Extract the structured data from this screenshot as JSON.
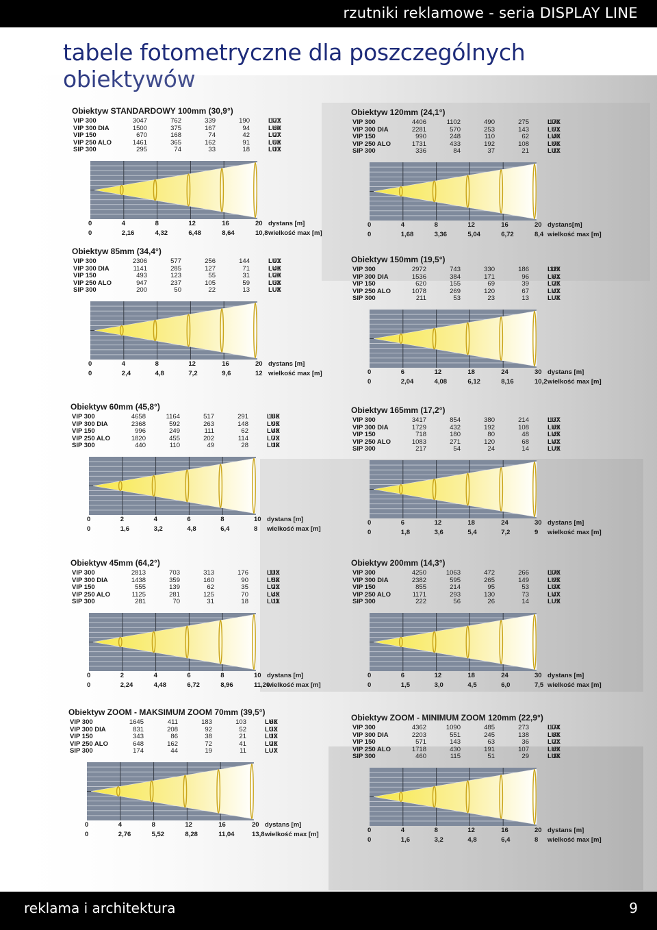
{
  "header": {
    "title": "rzutniki reklamowe - seria DISPLAY LINE"
  },
  "page_title": "tabele fotometryczne dla poszczególnych obiektywów",
  "footer": {
    "left": "reklama i architektura",
    "page": "9"
  },
  "units": {
    "lux": "LUX",
    "distance": "dystans [m]",
    "distance_alt": "dystans[m]",
    "size": "wielkość max [m]"
  },
  "lenses": [
    {
      "title": "Obiektyw STANDARDOWY 100mm (30,9°)",
      "rows": [
        {
          "model": "VIP 300",
          "values": [
            "3047",
            "762",
            "339",
            "190",
            "122"
          ]
        },
        {
          "model": "VIP 300 DIA",
          "values": [
            "1500",
            "375",
            "167",
            "94",
            "60"
          ]
        },
        {
          "model": "VIP 150",
          "values": [
            "670",
            "168",
            "74",
            "42",
            "27"
          ]
        },
        {
          "model": "VIP 250 ALO",
          "values": [
            "1461",
            "365",
            "162",
            "91",
            "58"
          ]
        },
        {
          "model": "SIP 300",
          "values": [
            "295",
            "74",
            "33",
            "18",
            "12"
          ]
        }
      ],
      "distance_ticks": [
        "0",
        "4",
        "8",
        "12",
        "16",
        "20"
      ],
      "size_ticks": [
        "0",
        "2,16",
        "4,32",
        "6,48",
        "8,64",
        "10,8"
      ],
      "distance_label": "dystans [m]"
    },
    {
      "title": "Obiektyw 120mm (24,1°)",
      "rows": [
        {
          "model": "VIP 300",
          "values": [
            "4406",
            "1102",
            "490",
            "275",
            "176"
          ]
        },
        {
          "model": "VIP 300 DIA",
          "values": [
            "2281",
            "570",
            "253",
            "143",
            "91"
          ]
        },
        {
          "model": "VIP 150",
          "values": [
            "990",
            "248",
            "110",
            "62",
            "40"
          ]
        },
        {
          "model": "VIP 250 ALO",
          "values": [
            "1731",
            "433",
            "192",
            "108",
            "96"
          ]
        },
        {
          "model": "SIP 300",
          "values": [
            "336",
            "84",
            "37",
            "21",
            "13"
          ]
        }
      ],
      "distance_ticks": [
        "0",
        "4",
        "8",
        "12",
        "16",
        "20"
      ],
      "size_ticks": [
        "0",
        "1,68",
        "3,36",
        "5,04",
        "6,72",
        "8,4"
      ],
      "distance_label": "dystans[m]"
    },
    {
      "title": "Obiektyw 85mm (34,4°)",
      "rows": [
        {
          "model": "VIP 300",
          "values": [
            "2306",
            "577",
            "256",
            "144",
            "92"
          ]
        },
        {
          "model": "VIP 300 DIA",
          "values": [
            "1141",
            "285",
            "127",
            "71",
            "46"
          ]
        },
        {
          "model": "VIP 150",
          "values": [
            "493",
            "123",
            "55",
            "31",
            "20"
          ]
        },
        {
          "model": "VIP 250 ALO",
          "values": [
            "947",
            "237",
            "105",
            "59",
            "38"
          ]
        },
        {
          "model": "SIP 300",
          "values": [
            "200",
            "50",
            "22",
            "13",
            "8"
          ]
        }
      ],
      "distance_ticks": [
        "0",
        "4",
        "8",
        "12",
        "16",
        "20"
      ],
      "size_ticks": [
        "0",
        "2,4",
        "4,8",
        "7,2",
        "9,6",
        "12"
      ],
      "distance_label": "dystans [m]"
    },
    {
      "title": "Obiektyw 150mm (19,5°)",
      "rows": [
        {
          "model": "VIP 300",
          "values": [
            "2972",
            "743",
            "330",
            "186",
            "119"
          ]
        },
        {
          "model": "VIP 300 DIA",
          "values": [
            "1536",
            "384",
            "171",
            "96",
            "61"
          ]
        },
        {
          "model": "VIP 150",
          "values": [
            "620",
            "155",
            "69",
            "39",
            "25"
          ]
        },
        {
          "model": "VIP 250 ALO",
          "values": [
            "1078",
            "269",
            "120",
            "67",
            "43"
          ]
        },
        {
          "model": "SIP 300",
          "values": [
            "211",
            "53",
            "23",
            "13",
            "8"
          ]
        }
      ],
      "distance_ticks": [
        "0",
        "6",
        "12",
        "18",
        "24",
        "30"
      ],
      "size_ticks": [
        "0",
        "2,04",
        "4,08",
        "6,12",
        "8,16",
        "10,2"
      ],
      "distance_label": "dystans [m]"
    },
    {
      "title": "Obiektyw 60mm (45,8°)",
      "rows": [
        {
          "model": "VIP 300",
          "values": [
            "4658",
            "1164",
            "517",
            "291",
            "186"
          ]
        },
        {
          "model": "VIP 300 DIA",
          "values": [
            "2368",
            "592",
            "263",
            "148",
            "95"
          ]
        },
        {
          "model": "VIP 150",
          "values": [
            "996",
            "249",
            "111",
            "62",
            "40"
          ]
        },
        {
          "model": "VIP 250 ALO",
          "values": [
            "1820",
            "455",
            "202",
            "114",
            "73"
          ]
        },
        {
          "model": "SIP 300",
          "values": [
            "440",
            "110",
            "49",
            "28",
            "18"
          ]
        }
      ],
      "distance_ticks": [
        "0",
        "2",
        "4",
        "6",
        "8",
        "10"
      ],
      "size_ticks": [
        "0",
        "1,6",
        "3,2",
        "4,8",
        "6,4",
        "8"
      ],
      "distance_label": "dystans [m]"
    },
    {
      "title": "Obiektyw 165mm (17,2°)",
      "rows": [
        {
          "model": "VIP 300",
          "values": [
            "3417",
            "854",
            "380",
            "214",
            "137"
          ]
        },
        {
          "model": "VIP 300 DIA",
          "values": [
            "1729",
            "432",
            "192",
            "108",
            "69"
          ]
        },
        {
          "model": "VIP 150",
          "values": [
            "718",
            "180",
            "80",
            "48",
            "45"
          ]
        },
        {
          "model": "VIP 250 ALO",
          "values": [
            "1083",
            "271",
            "120",
            "68",
            "43"
          ]
        },
        {
          "model": "SIP 300",
          "values": [
            "217",
            "54",
            "24",
            "14",
            "9"
          ]
        }
      ],
      "distance_ticks": [
        "0",
        "6",
        "12",
        "18",
        "24",
        "30"
      ],
      "size_ticks": [
        "0",
        "1,8",
        "3,6",
        "5,4",
        "7,2",
        "9"
      ],
      "distance_label": "dystans [m]"
    },
    {
      "title": "Obiektyw 45mm (64,2°)",
      "rows": [
        {
          "model": "VIP 300",
          "values": [
            "2813",
            "703",
            "313",
            "176",
            "113"
          ]
        },
        {
          "model": "VIP 300 DIA",
          "values": [
            "1438",
            "359",
            "160",
            "90",
            "58"
          ]
        },
        {
          "model": "VIP 150",
          "values": [
            "555",
            "139",
            "62",
            "35",
            "22"
          ]
        },
        {
          "model": "VIP 250 ALO",
          "values": [
            "1125",
            "281",
            "125",
            "70",
            "45"
          ]
        },
        {
          "model": "SIP 300",
          "values": [
            "281",
            "70",
            "31",
            "18",
            "11"
          ]
        }
      ],
      "distance_ticks": [
        "0",
        "2",
        "4",
        "6",
        "8",
        "10"
      ],
      "size_ticks": [
        "0",
        "2,24",
        "4,48",
        "6,72",
        "8,96",
        "11,20"
      ],
      "distance_label": "dystans [m]"
    },
    {
      "title": "Obiektyw 200mm (14,3°)",
      "rows": [
        {
          "model": "VIP 300",
          "values": [
            "4250",
            "1063",
            "472",
            "266",
            "170"
          ]
        },
        {
          "model": "VIP 300 DIA",
          "values": [
            "2382",
            "595",
            "265",
            "149",
            "95"
          ]
        },
        {
          "model": "VIP 150",
          "values": [
            "855",
            "214",
            "95",
            "53",
            "34"
          ]
        },
        {
          "model": "VIP 250 ALO",
          "values": [
            "1171",
            "293",
            "130",
            "73",
            "47"
          ]
        },
        {
          "model": "SIP 300",
          "values": [
            "222",
            "56",
            "26",
            "14",
            "9"
          ]
        }
      ],
      "distance_ticks": [
        "0",
        "6",
        "12",
        "18",
        "24",
        "30"
      ],
      "size_ticks": [
        "0",
        "1,5",
        "3,0",
        "4,5",
        "6,0",
        "7,5"
      ],
      "distance_label": "dystans [m]"
    },
    {
      "title": "Obiektyw ZOOM - MAKSIMUM ZOOM 70mm (39,5°)",
      "rows": [
        {
          "model": "VIP 300",
          "values": [
            "1645",
            "411",
            "183",
            "103",
            "66"
          ]
        },
        {
          "model": "VIP 300 DIA",
          "values": [
            "831",
            "208",
            "92",
            "52",
            "33"
          ]
        },
        {
          "model": "VIP 150",
          "values": [
            "343",
            "86",
            "38",
            "21",
            "13"
          ]
        },
        {
          "model": "VIP 250 ALO",
          "values": [
            "648",
            "162",
            "72",
            "41",
            "26"
          ]
        },
        {
          "model": "SIP 300",
          "values": [
            "174",
            "44",
            "19",
            "11",
            "7"
          ]
        }
      ],
      "distance_ticks": [
        "0",
        "4",
        "8",
        "12",
        "16",
        "20"
      ],
      "size_ticks": [
        "0",
        "2,76",
        "5,52",
        "8,28",
        "11,04",
        "13,8"
      ],
      "distance_label": "dystans [m]"
    },
    {
      "title": "Obiektyw ZOOM - MINIMUM ZOOM 120mm (22,9°)",
      "rows": [
        {
          "model": "VIP 300",
          "values": [
            "4362",
            "1090",
            "485",
            "273",
            "174"
          ]
        },
        {
          "model": "VIP 300 DIA",
          "values": [
            "2203",
            "551",
            "245",
            "138",
            "88"
          ]
        },
        {
          "model": "VIP 150",
          "values": [
            "571",
            "143",
            "63",
            "36",
            "23"
          ]
        },
        {
          "model": "VIP 250 ALO",
          "values": [
            "1718",
            "430",
            "191",
            "107",
            "69"
          ]
        },
        {
          "model": "SIP 300",
          "values": [
            "460",
            "115",
            "51",
            "29",
            "18"
          ]
        }
      ],
      "distance_ticks": [
        "0",
        "4",
        "8",
        "12",
        "16",
        "20"
      ],
      "size_ticks": [
        "0",
        "1,6",
        "3,2",
        "4,8",
        "6,4",
        "8"
      ],
      "distance_label": "dystans [m]"
    }
  ]
}
